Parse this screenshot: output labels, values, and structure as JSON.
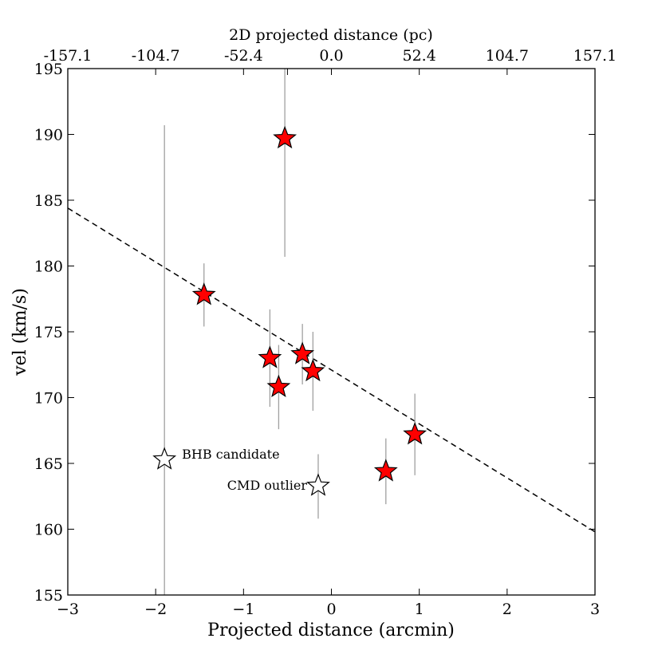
{
  "chart_data": {
    "type": "scatter",
    "xlabel": "Projected distance (arcmin)",
    "ylabel": "vel (km/s)",
    "top_xlabel": "2D projected distance (pc)",
    "xlim": [
      -3,
      3
    ],
    "ylim": [
      155,
      195
    ],
    "x_ticks": [
      -3,
      -2,
      -1,
      0,
      1,
      2,
      3
    ],
    "x_tick_labels": [
      "−3",
      "−2",
      "−1",
      "0",
      "1",
      "2",
      "3"
    ],
    "y_ticks": [
      155,
      160,
      165,
      170,
      175,
      180,
      185,
      190,
      195
    ],
    "y_tick_labels": [
      "155",
      "160",
      "165",
      "170",
      "175",
      "180",
      "185",
      "190",
      "195"
    ],
    "top_ticks": [
      -3,
      -2,
      -1,
      -0.5,
      0,
      1,
      2,
      3
    ],
    "top_tick_labels": [
      "-157.1",
      "-104.7",
      "-52.4",
      "0.0",
      "52.4",
      "104.7",
      "157.1"
    ],
    "top_tick_label_positions": [
      -3,
      -2,
      -1,
      0,
      1,
      2,
      3
    ],
    "members": [
      {
        "x": -1.45,
        "y": 177.8,
        "err_low": 175.4,
        "err_high": 180.2
      },
      {
        "x": -0.53,
        "y": 189.7,
        "err_low": 180.7,
        "err_high": 195.0
      },
      {
        "x": -0.7,
        "y": 173.0,
        "err_low": 169.3,
        "err_high": 176.7
      },
      {
        "x": -0.6,
        "y": 170.8,
        "err_low": 167.6,
        "err_high": 174.0
      },
      {
        "x": -0.33,
        "y": 173.3,
        "err_low": 171.0,
        "err_high": 175.6
      },
      {
        "x": -0.21,
        "y": 172.0,
        "err_low": 169.0,
        "err_high": 175.0
      },
      {
        "x": 0.62,
        "y": 164.4,
        "err_low": 161.9,
        "err_high": 166.9
      },
      {
        "x": 0.95,
        "y": 167.2,
        "err_low": 164.1,
        "err_high": 170.3
      }
    ],
    "non_members": [
      {
        "x": -1.9,
        "y": 165.3,
        "err_low": 155.0,
        "err_high": 190.7,
        "label": "BHB candidate"
      },
      {
        "x": -0.15,
        "y": 163.3,
        "err_low": 160.8,
        "err_high": 165.7,
        "label": "CMD outlier"
      }
    ],
    "fit_line": {
      "x": [
        -3,
        3
      ],
      "y": [
        184.4,
        159.8
      ]
    },
    "member_color": "#ff0000",
    "non_member_color": "#ffffff",
    "errorbar_color": "#a0a0a0"
  }
}
